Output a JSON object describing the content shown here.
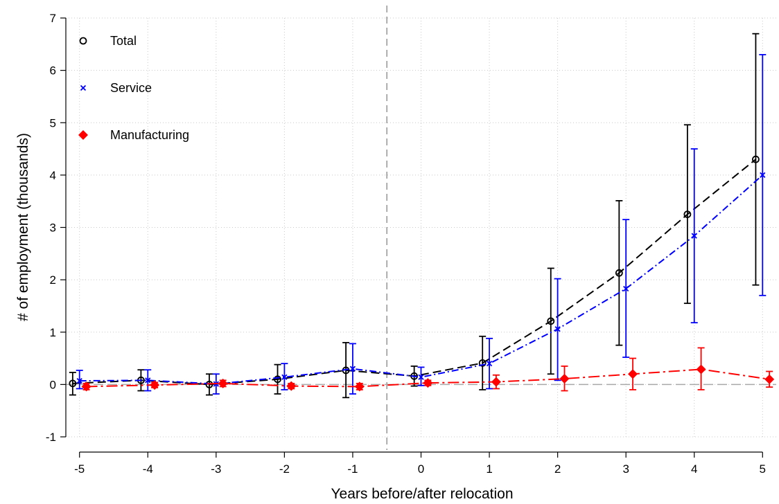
{
  "chart_data": {
    "type": "line",
    "xlabel": "Years before/after relocation",
    "ylabel": "# of employment (thousands)",
    "xlim": [
      -5.2,
      5.2
    ],
    "ylim": [
      -1,
      7
    ],
    "x_ticks": [
      "-5",
      "-4",
      "-3",
      "-2",
      "-1",
      "0",
      "1",
      "2",
      "3",
      "4",
      "5"
    ],
    "y_ticks": [
      "-1",
      "0",
      "1",
      "2",
      "3",
      "4",
      "5",
      "6",
      "7"
    ],
    "grid": true,
    "reference_lines": {
      "vertical_x": -0.5,
      "horizontal_y": 0
    },
    "legend_position": "top-left",
    "x": [
      -5,
      -4,
      -3,
      -2,
      -1,
      0,
      1,
      2,
      3,
      4,
      5
    ],
    "series": [
      {
        "name": "Total",
        "color": "#000000",
        "marker": "hollow-circle",
        "line_style": "dashed",
        "values": [
          0.02,
          0.08,
          0.0,
          0.1,
          0.27,
          0.16,
          0.41,
          1.21,
          2.13,
          3.25,
          4.3
        ],
        "ci_low": [
          -0.2,
          -0.12,
          -0.2,
          -0.18,
          -0.25,
          -0.03,
          -0.1,
          0.2,
          0.75,
          1.55,
          1.9
        ],
        "ci_high": [
          0.23,
          0.28,
          0.2,
          0.38,
          0.8,
          0.35,
          0.92,
          2.22,
          3.51,
          4.96,
          6.7
        ]
      },
      {
        "name": "Service",
        "color": "#0000ff",
        "marker": "x",
        "line_style": "dash-dot",
        "values": [
          0.07,
          0.08,
          0.01,
          0.14,
          0.3,
          0.14,
          0.4,
          1.06,
          1.83,
          2.84,
          4.0
        ],
        "ci_low": [
          -0.08,
          -0.12,
          -0.18,
          -0.1,
          -0.18,
          -0.02,
          -0.08,
          0.08,
          0.52,
          1.18,
          1.7
        ],
        "ci_high": [
          0.27,
          0.28,
          0.2,
          0.4,
          0.78,
          0.33,
          0.88,
          2.02,
          3.15,
          4.5,
          6.3
        ]
      },
      {
        "name": "Manufacturing",
        "color": "#ff0000",
        "marker": "filled-diamond",
        "line_style": "long-dash-dot",
        "values": [
          -0.04,
          -0.01,
          0.02,
          -0.03,
          -0.04,
          0.03,
          0.05,
          0.11,
          0.2,
          0.29,
          0.1
        ],
        "ci_low": [
          -0.1,
          -0.06,
          -0.04,
          -0.08,
          -0.1,
          -0.02,
          -0.08,
          -0.12,
          -0.1,
          -0.1,
          -0.05
        ],
        "ci_high": [
          0.02,
          0.04,
          0.08,
          0.02,
          0.02,
          0.08,
          0.18,
          0.35,
          0.5,
          0.7,
          0.25
        ]
      }
    ]
  }
}
